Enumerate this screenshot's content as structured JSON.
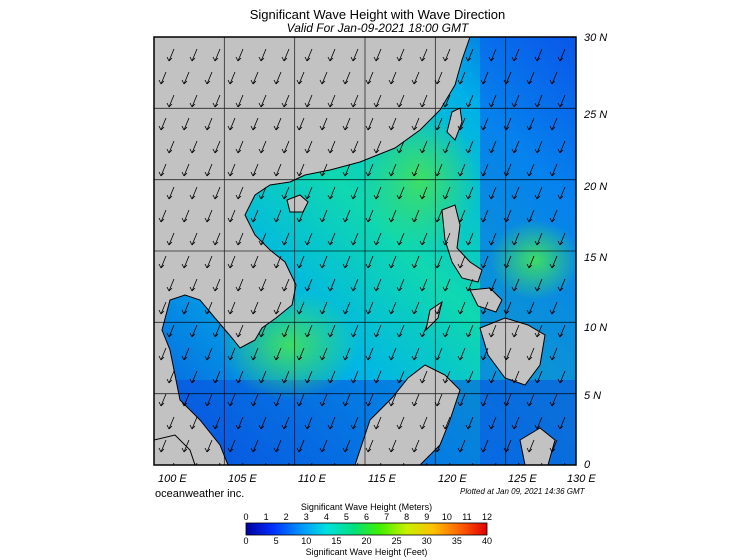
{
  "header": {
    "title": "Significant Wave Height with Wave Direction",
    "subtitle": "Valid For Jan-09-2021 18:00 GMT"
  },
  "map": {
    "region": "South China Sea / Western Pacific",
    "lon_range": [
      100,
      130
    ],
    "lat_range": [
      0,
      30
    ],
    "lon_ticks": [
      "100 E",
      "105 E",
      "110 E",
      "115 E",
      "120 E",
      "125 E",
      "130 E"
    ],
    "lat_ticks": [
      "30 N",
      "25 N",
      "20 N",
      "15 N",
      "10 N",
      "5 N",
      "0"
    ],
    "wave_direction": "from northeast",
    "colors": {
      "land": "#c2c2c2",
      "deep_sea": "#0a57e8",
      "mid_sea": "#00c8d8",
      "high_sea": "#35d860"
    }
  },
  "footer": {
    "credit": "oceanweather inc.",
    "plotted": "Plotted at Jan 09, 2021 14:36 GMT"
  },
  "colorbar": {
    "meters_label": "Significant Wave Height (Meters)",
    "feet_label": "Significant Wave Height (Feet)",
    "meters_ticks": [
      "0",
      "1",
      "2",
      "3",
      "4",
      "5",
      "6",
      "7",
      "8",
      "9",
      "10",
      "11",
      "12"
    ],
    "feet_ticks": [
      "0",
      "5",
      "10",
      "15",
      "20",
      "25",
      "30",
      "35",
      "40"
    ],
    "stops": [
      "#0000a0",
      "#0030ff",
      "#0090ff",
      "#00e0e0",
      "#00e080",
      "#40f000",
      "#c8f000",
      "#ffc000",
      "#ff6000",
      "#e00000"
    ]
  }
}
